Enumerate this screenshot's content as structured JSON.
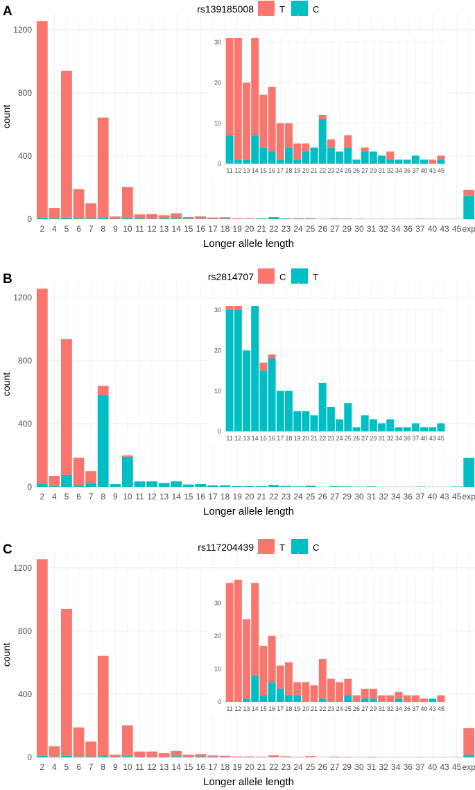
{
  "colors": {
    "red": "#F8766D",
    "teal": "#00BFC4",
    "grid": "#EBEBEB",
    "text": "#4D4D4D"
  },
  "chart_data": [
    {
      "type": "bar",
      "stacked": true,
      "panel_label": "A",
      "legend_title": "rs139185008",
      "legend": [
        {
          "label": "T",
          "color": "#F8766D"
        },
        {
          "label": "C",
          "color": "#00BFC4"
        }
      ],
      "xlabel": "Longer allele length",
      "ylabel": "count",
      "ylim": [
        0,
        1300
      ],
      "yticks": [
        0,
        400,
        800,
        1200
      ],
      "categories": [
        "2",
        "4",
        "5",
        "6",
        "7",
        "8",
        "9",
        "10",
        "11",
        "12",
        "13",
        "14",
        "15",
        "16",
        "17",
        "18",
        "19",
        "20",
        "21",
        "22",
        "23",
        "24",
        "25",
        "26",
        "27",
        "29",
        "30",
        "31",
        "32",
        "34",
        "36",
        "37",
        "40",
        "43",
        "45",
        "exp"
      ],
      "series": [
        {
          "name": "T",
          "values": [
            1245,
            65,
            930,
            185,
            95,
            635,
            15,
            195,
            25,
            30,
            20,
            30,
            10,
            15,
            8,
            8,
            5,
            5,
            2,
            2,
            2,
            4,
            2,
            2,
            2,
            1,
            1,
            1,
            1,
            1,
            1,
            1,
            1,
            1,
            1,
            40
          ]
        },
        {
          "name": "C",
          "values": [
            10,
            5,
            10,
            5,
            5,
            8,
            2,
            8,
            5,
            2,
            5,
            7,
            4,
            3,
            2,
            4,
            1,
            1,
            4,
            11,
            4,
            3,
            4,
            1,
            3,
            3,
            2,
            1,
            1,
            1,
            1,
            2,
            1,
            1,
            1,
            145
          ]
        }
      ],
      "inset": {
        "ylim": [
          0,
          31
        ],
        "yticks": [
          0,
          10,
          20,
          30
        ],
        "categories": [
          "11",
          "12",
          "13",
          "14",
          "15",
          "16",
          "17",
          "18",
          "19",
          "20",
          "21",
          "22",
          "23",
          "24",
          "25",
          "26",
          "27",
          "29",
          "31",
          "32",
          "34",
          "36",
          "37",
          "40",
          "43",
          "45"
        ],
        "series": [
          {
            "name": "T",
            "values": [
              24,
              30,
              19,
              24,
              13,
              16,
              9,
              6,
              4,
              2,
              0,
              1,
              2,
              0,
              3,
              0,
              1,
              0,
              0,
              2,
              0,
              0,
              0,
              0,
              1,
              1
            ]
          },
          {
            "name": "C",
            "values": [
              7,
              1,
              1,
              7,
              4,
              3,
              1,
              4,
              1,
              3,
              4,
              11,
              4,
              3,
              4,
              1,
              3,
              3,
              2,
              1,
              1,
              1,
              2,
              1,
              0,
              1
            ]
          }
        ]
      }
    },
    {
      "type": "bar",
      "stacked": true,
      "panel_label": "B",
      "legend_title": "rs2814707",
      "legend": [
        {
          "label": "C",
          "color": "#F8766D"
        },
        {
          "label": "T",
          "color": "#00BFC4"
        }
      ],
      "xlabel": "Longer allele length",
      "ylabel": "count",
      "ylim": [
        0,
        1300
      ],
      "yticks": [
        0,
        400,
        800,
        1200
      ],
      "categories": [
        "2",
        "4",
        "5",
        "6",
        "7",
        "8",
        "9",
        "10",
        "11",
        "12",
        "13",
        "14",
        "15",
        "16",
        "17",
        "18",
        "19",
        "20",
        "21",
        "22",
        "23",
        "24",
        "25",
        "26",
        "27",
        "29",
        "30",
        "31",
        "32",
        "34",
        "36",
        "37",
        "40",
        "43",
        "45",
        "exp"
      ],
      "series": [
        {
          "name": "C",
          "values": [
            1235,
            65,
            860,
            175,
            75,
            60,
            0,
            10,
            0,
            0,
            0,
            0,
            0,
            0,
            0,
            0,
            0,
            0,
            0,
            0,
            0,
            0,
            0,
            0,
            0,
            0,
            0,
            0,
            0,
            0,
            0,
            0,
            0,
            0,
            0,
            0
          ]
        },
        {
          "name": "T",
          "values": [
            20,
            5,
            75,
            10,
            25,
            580,
            17,
            190,
            35,
            35,
            25,
            35,
            15,
            18,
            10,
            10,
            5,
            5,
            4,
            12,
            6,
            3,
            7,
            1,
            4,
            3,
            2,
            3,
            1,
            1,
            1,
            2,
            1,
            1,
            2,
            185
          ]
        }
      ],
      "inset": {
        "ylim": [
          0,
          31
        ],
        "yticks": [
          0,
          10,
          20,
          30
        ],
        "categories": [
          "11",
          "12",
          "13",
          "14",
          "15",
          "16",
          "17",
          "18",
          "19",
          "20",
          "21",
          "22",
          "23",
          "24",
          "25",
          "26",
          "27",
          "29",
          "31",
          "32",
          "34",
          "36",
          "37",
          "40",
          "43",
          "45"
        ],
        "series": [
          {
            "name": "C",
            "values": [
              1,
              1,
              0,
              0,
              2,
              1,
              0,
              0,
              0,
              0,
              0,
              0,
              0,
              0,
              0,
              0,
              0,
              0,
              0,
              0,
              0,
              0,
              0,
              0,
              0,
              0
            ]
          },
          {
            "name": "T",
            "values": [
              30,
              30,
              20,
              31,
              15,
              18,
              10,
              10,
              5,
              5,
              4,
              12,
              6,
              3,
              7,
              1,
              4,
              3,
              2,
              3,
              1,
              1,
              2,
              1,
              1,
              2
            ]
          }
        ]
      }
    },
    {
      "type": "bar",
      "stacked": true,
      "panel_label": "C",
      "legend_title": "rs117204439",
      "legend": [
        {
          "label": "T",
          "color": "#F8766D"
        },
        {
          "label": "C",
          "color": "#00BFC4"
        }
      ],
      "xlabel": "Longer allele length",
      "ylabel": "count",
      "ylim": [
        0,
        1300
      ],
      "yticks": [
        0,
        400,
        800,
        1200
      ],
      "categories": [
        "2",
        "4",
        "5",
        "6",
        "7",
        "8",
        "9",
        "10",
        "11",
        "12",
        "13",
        "14",
        "15",
        "16",
        "17",
        "18",
        "19",
        "20",
        "21",
        "22",
        "23",
        "24",
        "25",
        "26",
        "27",
        "29",
        "30",
        "31",
        "32",
        "34",
        "36",
        "37",
        "40",
        "43",
        "45",
        "exp"
      ],
      "series": [
        {
          "name": "T",
          "values": [
            1245,
            65,
            930,
            185,
            95,
            635,
            15,
            195,
            35,
            35,
            25,
            32,
            15,
            15,
            8,
            8,
            5,
            5,
            4,
            12,
            6,
            3,
            7,
            1,
            4,
            3,
            2,
            3,
            1,
            1,
            1,
            2,
            1,
            1,
            2,
            170
          ]
        },
        {
          "name": "C",
          "values": [
            10,
            5,
            10,
            5,
            5,
            8,
            2,
            8,
            2,
            2,
            2,
            8,
            2,
            6,
            4,
            2,
            1,
            1,
            1,
            1,
            1,
            1,
            1,
            1,
            1,
            1,
            1,
            1,
            1,
            1,
            1,
            1,
            1,
            1,
            1,
            15
          ]
        }
      ],
      "inset": {
        "ylim": [
          0,
          38
        ],
        "yticks": [
          0,
          10,
          20,
          30
        ],
        "categories": [
          "11",
          "12",
          "13",
          "14",
          "15",
          "16",
          "17",
          "18",
          "19",
          "20",
          "21",
          "22",
          "23",
          "24",
          "25",
          "26",
          "27",
          "29",
          "31",
          "32",
          "34",
          "36",
          "37",
          "40",
          "43",
          "45"
        ],
        "series": [
          {
            "name": "T",
            "values": [
              36,
              37,
              24,
              28,
              15,
              14,
              7,
              10,
              4,
              6,
              5,
              12,
              7,
              6,
              5,
              2,
              3,
              3,
              2,
              2,
              2,
              2,
              2,
              1,
              0,
              2
            ]
          },
          {
            "name": "C",
            "values": [
              0,
              0,
              1,
              8,
              2,
              6,
              4,
              2,
              2,
              0,
              0,
              1,
              0,
              0,
              2,
              0,
              1,
              1,
              0,
              0,
              1,
              0,
              0,
              0,
              1,
              0
            ]
          }
        ]
      }
    }
  ]
}
